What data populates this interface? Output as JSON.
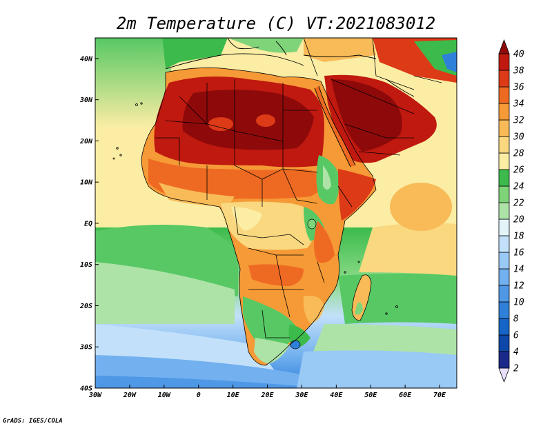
{
  "title": "2m Temperature (C) VT:2021083012",
  "credit": "GrADS: IGES/COLA",
  "chart_data": {
    "type": "heatmap",
    "title": "2m Temperature (C) VT:2021083012",
    "x_ticks": [
      "30W",
      "20W",
      "10W",
      "0",
      "10E",
      "20E",
      "30E",
      "40E",
      "50E",
      "60E",
      "70E"
    ],
    "y_ticks": [
      "40N",
      "30N",
      "20N",
      "10N",
      "EQ",
      "10S",
      "20S",
      "30S",
      "40S"
    ],
    "lon_range": [
      -30,
      75
    ],
    "lat_range": [
      -40,
      45
    ],
    "colorbar": {
      "levels": [
        "2",
        "4",
        "6",
        "8",
        "10",
        "12",
        "14",
        "16",
        "18",
        "20",
        "22",
        "24",
        "26",
        "28",
        "30",
        "32",
        "34",
        "36",
        "38",
        "40"
      ],
      "colors": [
        "#1a2a8a",
        "#0d47a8",
        "#1565c8",
        "#2f80d8",
        "#4f98e6",
        "#72b0ef",
        "#99c9f5",
        "#c2e0fa",
        "#e3f4f9",
        "#aee3a8",
        "#7fd47a",
        "#3cbb4c",
        "#fbeda4",
        "#f9d880",
        "#f8bb58",
        "#f59a36",
        "#ee6a22",
        "#dd3a18",
        "#c0190f",
        "#8e0a0a"
      ]
    }
  }
}
